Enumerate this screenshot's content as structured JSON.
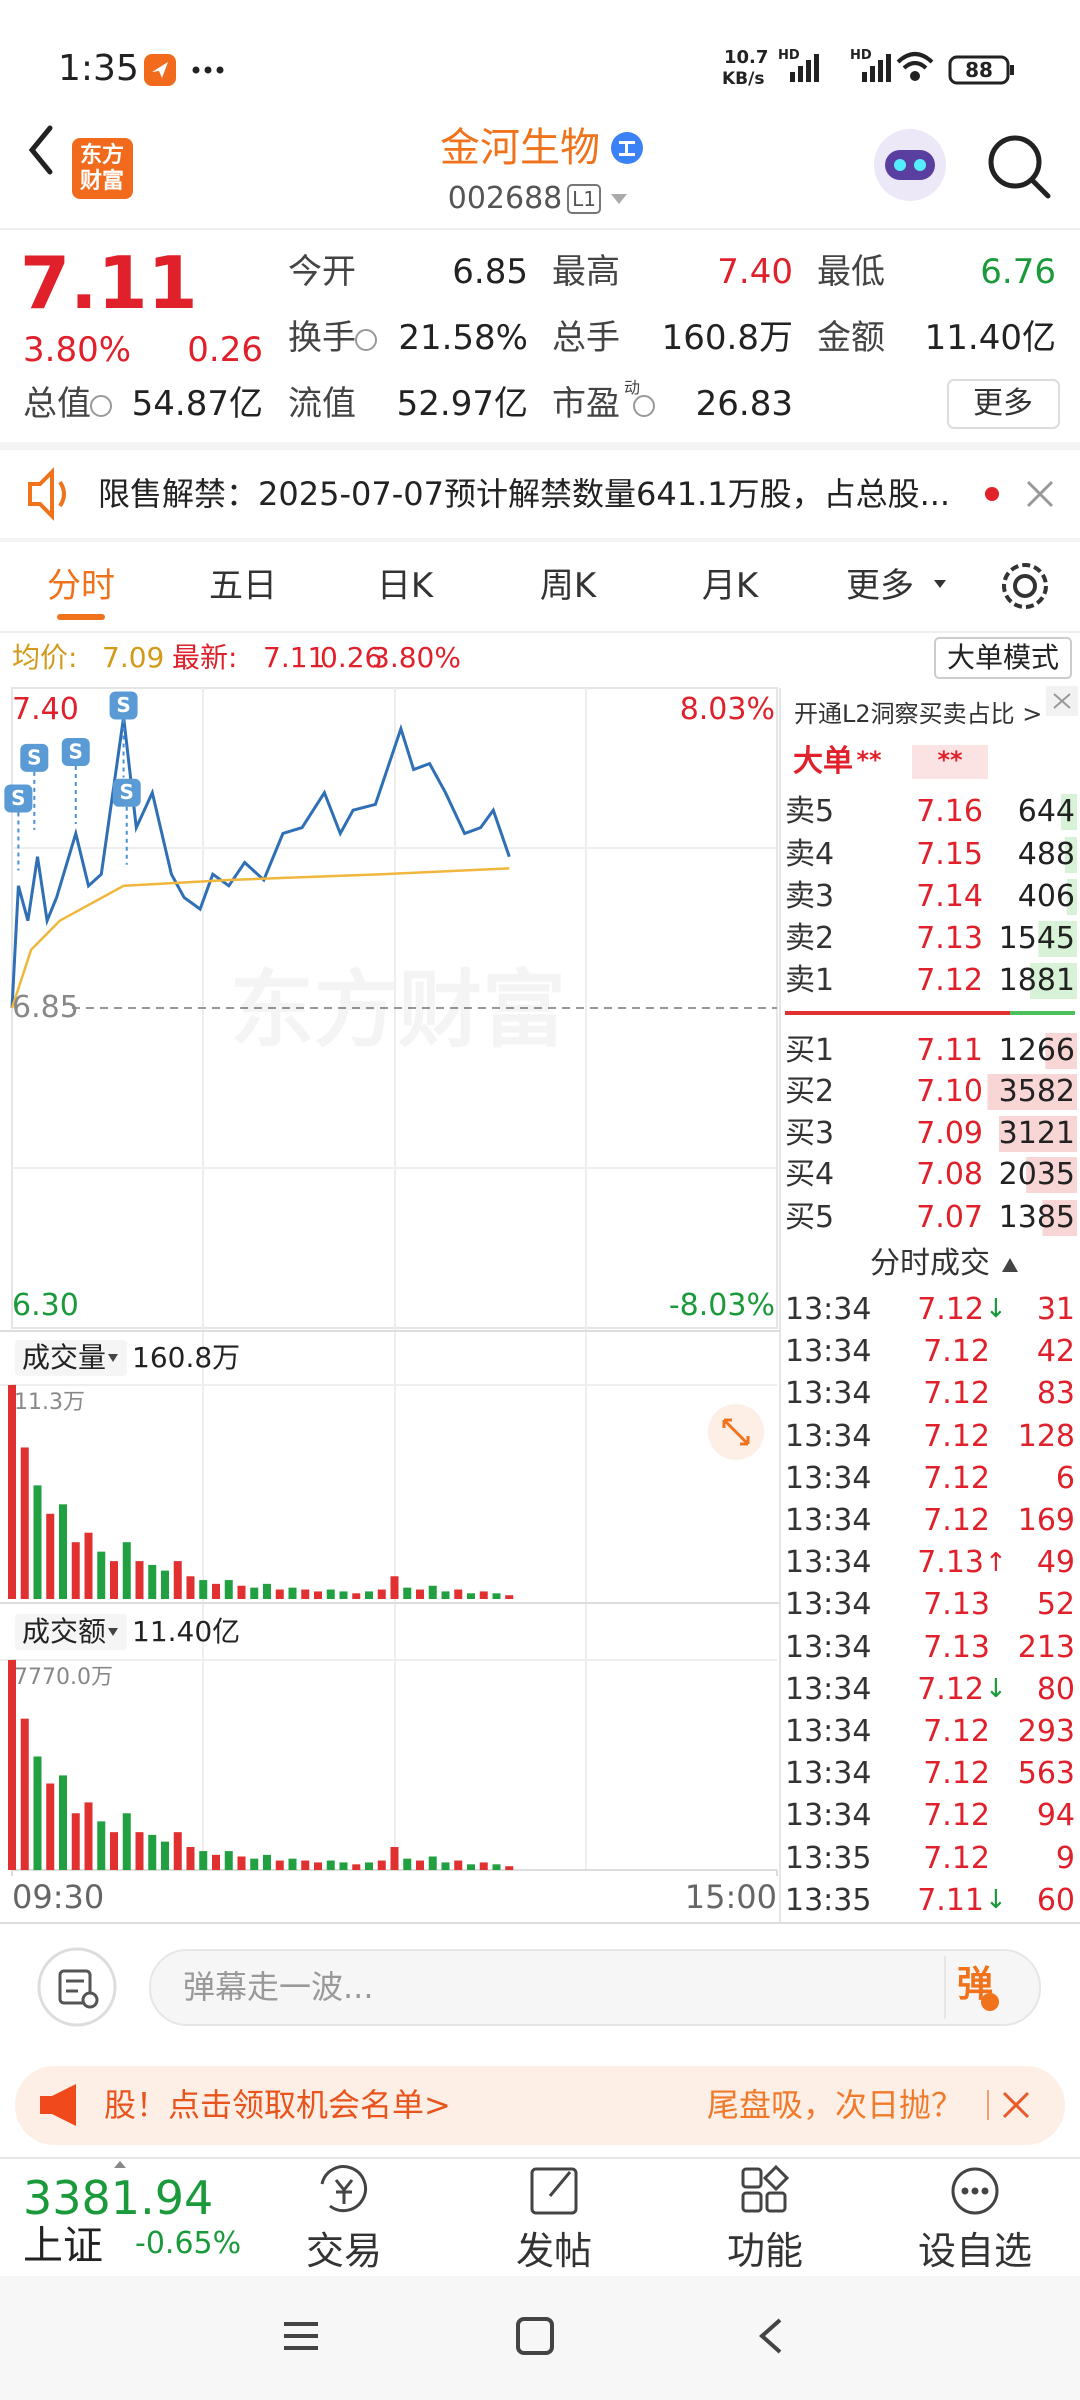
{
  "status_bar": {
    "time": "1:35",
    "network_speed": "10.7",
    "network_unit": "KB/s",
    "signal_labels": [
      "HD",
      "HD"
    ],
    "battery": "88"
  },
  "header": {
    "logo": [
      "东方",
      "财富"
    ],
    "title": "金河生物",
    "code": "002688",
    "level": "L1"
  },
  "quote": {
    "price": "7.11",
    "change_pct": "3.80%",
    "change": "0.26",
    "more": "更多",
    "stats": [
      {
        "label": "今开",
        "value": "6.85",
        "color": "#222222"
      },
      {
        "label": "最高",
        "value": "7.40",
        "color": "#e0202a"
      },
      {
        "label": "最低",
        "value": "6.76",
        "color": "#1a9a3a"
      },
      {
        "label": "换手",
        "value": "21.58%",
        "color": "#222222",
        "info": true
      },
      {
        "label": "总手",
        "value": "160.8万",
        "color": "#222222"
      },
      {
        "label": "金额",
        "value": "11.40亿",
        "color": "#222222"
      },
      {
        "label": "总值",
        "value": "54.87亿",
        "color": "#222222",
        "info": true
      },
      {
        "label": "流值",
        "value": "52.97亿",
        "color": "#222222"
      },
      {
        "label": "市盈",
        "sup": "动",
        "value": "26.83",
        "color": "#222222",
        "info": true
      }
    ]
  },
  "notice": {
    "text": "限售解禁：2025-07-07预计解禁数量641.1万股，占总股..."
  },
  "tabs": {
    "items": [
      "分时",
      "五日",
      "日K",
      "周K",
      "月K",
      "更多"
    ],
    "active": 0
  },
  "chart": {
    "type": "line",
    "avg_label": "均价:",
    "avg_value": "7.09",
    "latest_label": "最新:",
    "latest": "7.11",
    "change": "0.26",
    "change_pct": "3.80%",
    "mode_button": "大单模式",
    "watermark": "东方财富",
    "xlim": [
      0,
      240
    ],
    "xticks": [
      {
        "value": 0,
        "label": "09:30"
      },
      {
        "value": 240,
        "label": "15:00"
      }
    ],
    "ylim": [
      6.3,
      7.4
    ],
    "yticks": [
      {
        "value": 6.3,
        "label": "6.30"
      },
      6.85,
      {
        "value": 7.4,
        "label": "7.40"
      }
    ],
    "y2lim": [
      -8.03,
      8.03
    ],
    "y2ticks": [
      {
        "value": -8.03,
        "label": "-8.03%"
      },
      {
        "value": 8.03,
        "label": "8.03%"
      }
    ],
    "series": [
      {
        "color": "#2f6fb5",
        "x": [
          0,
          2,
          5,
          8,
          11,
          14,
          20,
          24,
          28,
          35,
          39,
          44,
          50,
          54,
          59,
          63,
          68,
          73,
          79,
          85,
          91,
          98,
          103,
          107,
          114,
          122,
          126,
          131,
          136,
          142,
          147,
          151,
          156
        ],
        "values": [
          6.85,
          7.06,
          7.0,
          7.11,
          7.0,
          7.04,
          7.15,
          7.06,
          7.08,
          7.35,
          7.16,
          7.22,
          7.08,
          7.04,
          7.02,
          7.08,
          7.06,
          7.1,
          7.07,
          7.15,
          7.16,
          7.22,
          7.15,
          7.19,
          7.2,
          7.33,
          7.26,
          7.27,
          7.22,
          7.15,
          7.16,
          7.19,
          7.11
        ]
      },
      {
        "color": "#f0b73c",
        "x": [
          0,
          6,
          15,
          35,
          68,
          116,
          156
        ],
        "values": [
          6.85,
          6.95,
          7.0,
          7.06,
          7.07,
          7.08,
          7.09
        ]
      }
    ],
    "signals": [
      {
        "x": 2,
        "y": 7.21,
        "label": "S"
      },
      {
        "x": 7,
        "y": 7.28,
        "label": "S"
      },
      {
        "x": 20,
        "y": 7.29,
        "label": "S"
      },
      {
        "x": 35,
        "y": 7.37,
        "label": "S"
      },
      {
        "x": 36,
        "y": 7.22,
        "label": "S"
      }
    ],
    "volume": {
      "label": "成交量",
      "value": "160.8万",
      "ylim": [
        0,
        11.3
      ],
      "yticks": [
        {
          "value": 11.3,
          "label": "11.3万"
        }
      ],
      "x": [
        0,
        4,
        8,
        12,
        16,
        20,
        24,
        28,
        32,
        36,
        40,
        44,
        48,
        52,
        56,
        60,
        64,
        68,
        72,
        76,
        80,
        84,
        88,
        92,
        96,
        100,
        104,
        108,
        112,
        116,
        120,
        124,
        128,
        132,
        136,
        140,
        144,
        148,
        152,
        156
      ],
      "values": [
        11.3,
        8,
        6,
        4.5,
        5,
        3,
        3.5,
        2.5,
        2,
        3,
        2,
        1.8,
        1.5,
        2,
        1.2,
        1,
        0.8,
        1,
        0.7,
        0.6,
        0.8,
        0.5,
        0.6,
        0.5,
        0.4,
        0.5,
        0.4,
        0.3,
        0.4,
        0.5,
        1.2,
        0.6,
        0.5,
        0.7,
        0.4,
        0.5,
        0.3,
        0.4,
        0.3,
        0.2
      ],
      "colors": [
        "#e03030",
        "#e03030",
        "#20a040",
        "#e03030",
        "#20a040",
        "#e03030",
        "#e03030",
        "#20a040",
        "#e03030",
        "#20a040",
        "#e03030",
        "#20a040",
        "#20a040",
        "#e03030",
        "#e03030",
        "#20a040",
        "#e03030",
        "#20a040",
        "#e03030",
        "#20a040",
        "#20a040",
        "#e03030",
        "#20a040",
        "#e03030",
        "#e03030",
        "#20a040",
        "#20a040",
        "#e03030",
        "#20a040",
        "#e03030",
        "#e03030",
        "#20a040",
        "#e03030",
        "#20a040",
        "#20a040",
        "#e03030",
        "#20a040",
        "#e03030",
        "#20a040",
        "#e03030"
      ]
    },
    "amount": {
      "label": "成交额",
      "value": "11.40亿",
      "ylim": [
        0,
        7770
      ],
      "yticks": [
        {
          "value": 7770,
          "label": "7770.0万"
        }
      ],
      "x": [
        0,
        4,
        8,
        12,
        16,
        20,
        24,
        28,
        32,
        36,
        40,
        44,
        48,
        52,
        56,
        60,
        64,
        68,
        72,
        76,
        80,
        84,
        88,
        92,
        96,
        100,
        104,
        108,
        112,
        116,
        120,
        124,
        128,
        132,
        136,
        140,
        144,
        148,
        152,
        156
      ],
      "values": [
        7770,
        5600,
        4200,
        3200,
        3500,
        2100,
        2500,
        1800,
        1400,
        2100,
        1400,
        1300,
        1050,
        1400,
        850,
        700,
        560,
        700,
        500,
        420,
        560,
        350,
        420,
        350,
        280,
        350,
        280,
        210,
        280,
        350,
        850,
        420,
        350,
        500,
        280,
        350,
        210,
        280,
        210,
        140
      ],
      "colors": [
        "#e03030",
        "#e03030",
        "#20a040",
        "#e03030",
        "#20a040",
        "#e03030",
        "#e03030",
        "#20a040",
        "#e03030",
        "#20a040",
        "#e03030",
        "#20a040",
        "#20a040",
        "#e03030",
        "#e03030",
        "#20a040",
        "#e03030",
        "#20a040",
        "#e03030",
        "#20a040",
        "#20a040",
        "#e03030",
        "#20a040",
        "#e03030",
        "#e03030",
        "#20a040",
        "#20a040",
        "#e03030",
        "#20a040",
        "#e03030",
        "#e03030",
        "#20a040",
        "#e03030",
        "#20a040",
        "#20a040",
        "#e03030",
        "#20a040",
        "#e03030",
        "#20a040",
        "#e03030"
      ]
    }
  },
  "order_book": {
    "promo": "开通L2洞察买卖占比 >",
    "big_order": "大单",
    "stars": "**",
    "sell": [
      {
        "label": "卖5",
        "price": "7.16",
        "volume": "644"
      },
      {
        "label": "卖4",
        "price": "7.15",
        "volume": "488"
      },
      {
        "label": "卖3",
        "price": "7.14",
        "volume": "406"
      },
      {
        "label": "卖2",
        "price": "7.13",
        "volume": "1545"
      },
      {
        "label": "卖1",
        "price": "7.12",
        "volume": "1881"
      }
    ],
    "buy": [
      {
        "label": "买1",
        "price": "7.11",
        "volume": "1266"
      },
      {
        "label": "买2",
        "price": "7.10",
        "volume": "3582"
      },
      {
        "label": "买3",
        "price": "7.09",
        "volume": "3121"
      },
      {
        "label": "买4",
        "price": "7.08",
        "volume": "2035"
      },
      {
        "label": "买5",
        "price": "7.07",
        "volume": "1385"
      }
    ],
    "trades_title": "分时成交",
    "trades": [
      {
        "time": "13:34",
        "price": "7.12",
        "arrow": "↓",
        "volume": "31"
      },
      {
        "time": "13:34",
        "price": "7.12",
        "volume": "42"
      },
      {
        "time": "13:34",
        "price": "7.12",
        "volume": "83"
      },
      {
        "time": "13:34",
        "price": "7.12",
        "volume": "128"
      },
      {
        "time": "13:34",
        "price": "7.12",
        "volume": "6"
      },
      {
        "time": "13:34",
        "price": "7.12",
        "volume": "169"
      },
      {
        "time": "13:34",
        "price": "7.13",
        "arrow": "↑",
        "volume": "49"
      },
      {
        "time": "13:34",
        "price": "7.13",
        "volume": "52"
      },
      {
        "time": "13:34",
        "price": "7.13",
        "volume": "213"
      },
      {
        "time": "13:34",
        "price": "7.12",
        "arrow": "↓",
        "volume": "80"
      },
      {
        "time": "13:34",
        "price": "7.12",
        "volume": "293"
      },
      {
        "time": "13:34",
        "price": "7.12",
        "volume": "563"
      },
      {
        "time": "13:34",
        "price": "7.12",
        "volume": "94"
      },
      {
        "time": "13:35",
        "price": "7.12",
        "volume": "9"
      },
      {
        "time": "13:35",
        "price": "7.11",
        "arrow": "↓",
        "volume": "60"
      }
    ]
  },
  "comment_bar": {
    "placeholder": "弹幕走一波...",
    "button": "弹"
  },
  "ad": {
    "left": "股！点击领取机会名单>",
    "right": "尾盘吸，次日抛？"
  },
  "bottom_nav": {
    "index_value": "3381.94",
    "index_name": "上证",
    "index_change": "-0.65%",
    "items": [
      "交易",
      "发帖",
      "功能",
      "设自选"
    ]
  }
}
